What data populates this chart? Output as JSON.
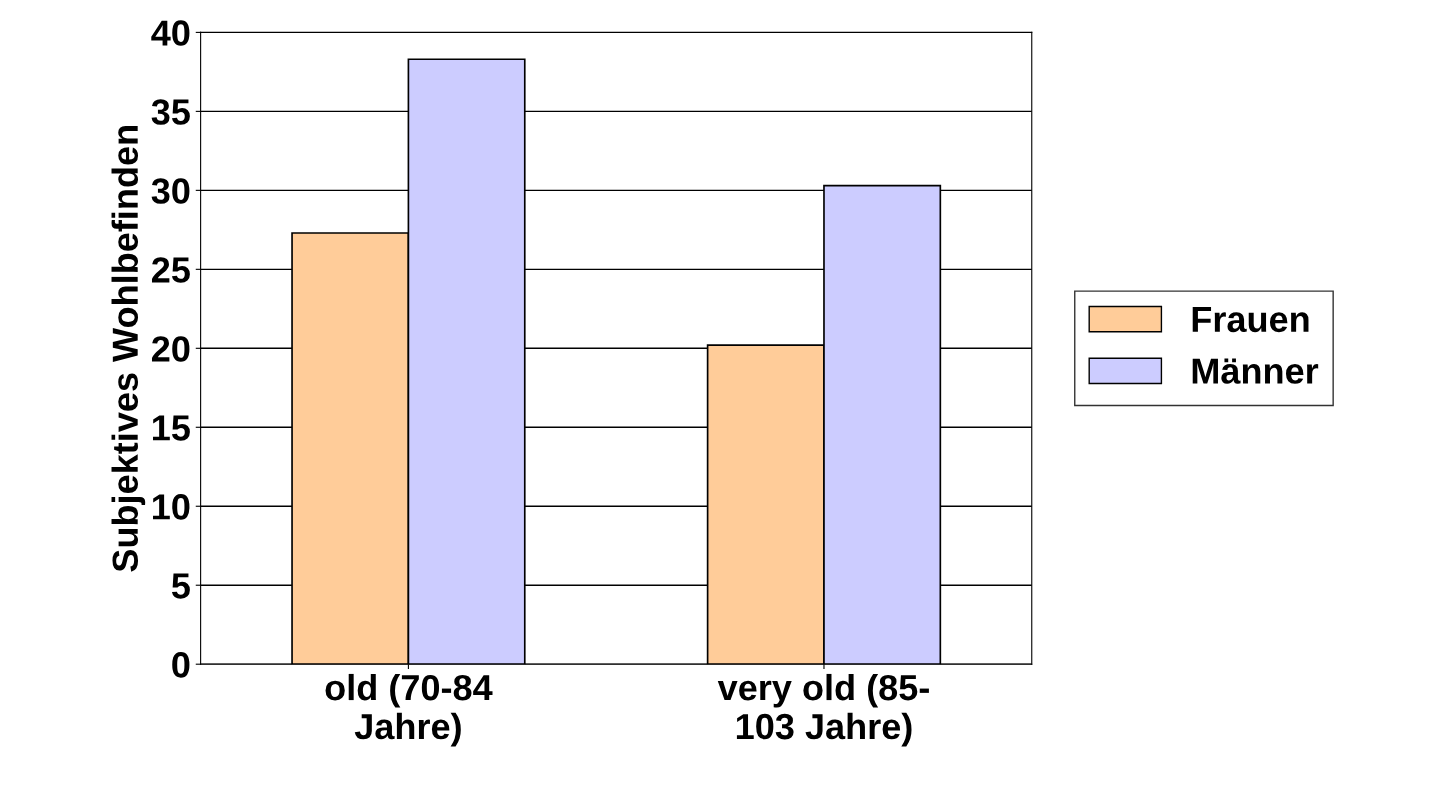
{
  "chart_data": {
    "type": "bar",
    "ylabel": "Subjektives Wohlbefinden",
    "categories": [
      "old (70-84\nJahre)",
      "very old (85-\n103 Jahre)"
    ],
    "series": [
      {
        "name": "Frauen",
        "color": "#ffcc99",
        "values": [
          27.3,
          20.2
        ]
      },
      {
        "name": "Männer",
        "color": "#ccccff",
        "values": [
          38.3,
          30.3
        ]
      }
    ],
    "ylim": [
      0,
      40
    ],
    "yticks": [
      0,
      5,
      10,
      15,
      20,
      25,
      30,
      35,
      40
    ],
    "grid": "y",
    "legend": "right"
  }
}
